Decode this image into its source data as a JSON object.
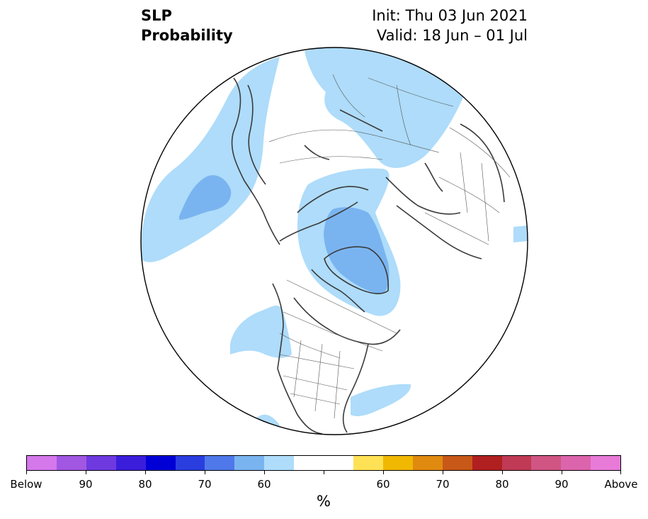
{
  "title": {
    "left_line1": "SLP",
    "left_line2": "Probability",
    "right_line1": "Init: Thu 03 Jun 2021",
    "right_line2": "Valid: 18 Jun – 01 Jul"
  },
  "map": {
    "projection": "north-polar-stereographic",
    "colors": {
      "land_border": "#3a3a3a",
      "below_40_60": "#aedcfa",
      "below_60_70": "#7ab4f0",
      "background": "#ffffff"
    }
  },
  "colorbar": {
    "unit_label": "%",
    "colors": [
      "#d478ec",
      "#a257e2",
      "#6e3ae0",
      "#3b1ddc",
      "#0000d6",
      "#2a3ee0",
      "#4f78ea",
      "#7ab4f0",
      "#aedcfa",
      "#ffffff",
      "#ffffff",
      "#ffe155",
      "#f0b800",
      "#e08a10",
      "#c85818",
      "#b02020",
      "#c03a55",
      "#d05582",
      "#dc64ac",
      "#e87ad8"
    ],
    "tick_labels": [
      {
        "label": "Below"
      },
      {
        "label": "90"
      },
      {
        "label": "80"
      },
      {
        "label": "70"
      },
      {
        "label": "60"
      },
      {
        "label": ""
      },
      {
        "label": "60"
      },
      {
        "label": "70"
      },
      {
        "label": "80"
      },
      {
        "label": "90"
      },
      {
        "label": "Above"
      }
    ]
  }
}
